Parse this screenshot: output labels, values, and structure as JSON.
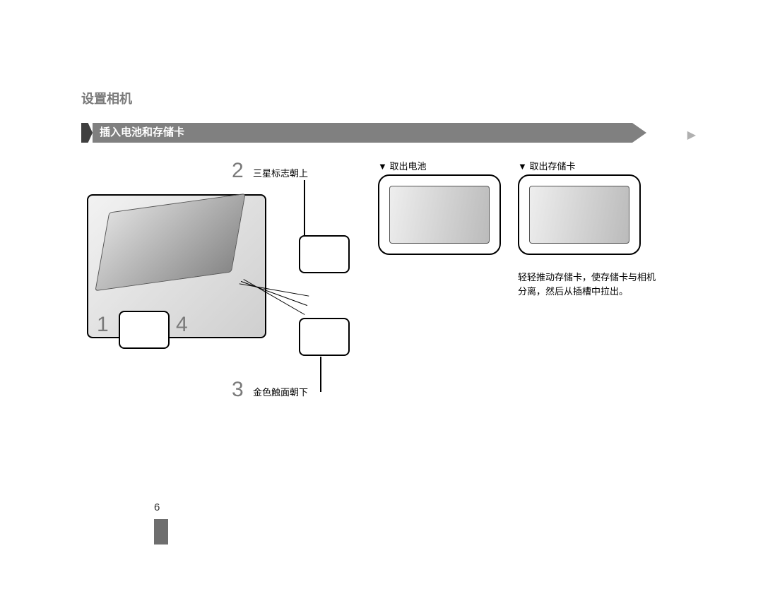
{
  "colors": {
    "title_grey": "#7a7a7a",
    "bar_dark": "#3f3f3f",
    "bar_grey": "#808080",
    "chevron_grey": "#b0b0b0",
    "text": "#000000",
    "background": "#ffffff"
  },
  "page": {
    "title": "设置相机",
    "section_heading": "插入电池和存储卡",
    "number": "6"
  },
  "steps": {
    "n1": "1",
    "n2": "2",
    "n3": "3",
    "n4": "4",
    "label2": "三星标志朝上",
    "label3": "金色触面朝下"
  },
  "right": {
    "head1": "▼ 取出电池",
    "head2": "▼ 取出存储卡",
    "caption": "轻轻推动存储卡，使存储卡与相机分离，然后从插槽中拉出。"
  }
}
